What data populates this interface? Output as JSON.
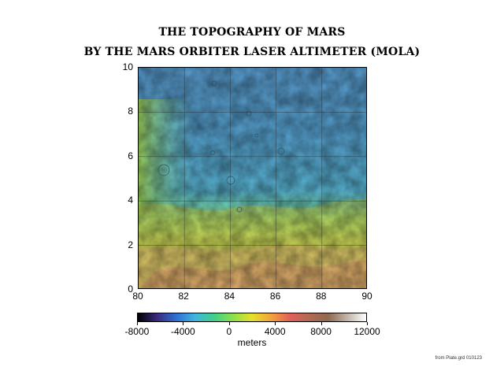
{
  "title_line1": "THE TOPOGRAPHY OF MARS",
  "title_line2": "BY THE MARS ORBITER LASER ALTIMETER (MOLA)",
  "map": {
    "x_ticks": [
      "80",
      "82",
      "84",
      "86",
      "88",
      "90"
    ],
    "y_ticks": [
      "0",
      "2",
      "4",
      "6",
      "8",
      "10"
    ],
    "x_range": [
      80,
      90
    ],
    "y_range": [
      0,
      10
    ],
    "grid": true
  },
  "colorbar": {
    "tick_labels": [
      "-8000",
      "-4000",
      "0",
      "4000",
      "8000",
      "12000"
    ],
    "range": [
      -8000,
      12000
    ],
    "unit": "meters",
    "stops": [
      "#000000",
      "#3a2a7a",
      "#2f6fd0",
      "#41b5e0",
      "#3fd08a",
      "#8ee04a",
      "#e6e02a",
      "#f2a43a",
      "#e0605a",
      "#b06a50",
      "#8e6a50",
      "#c2b4a8",
      "#ffffff"
    ]
  },
  "credit": "from Plate.grd 010123"
}
